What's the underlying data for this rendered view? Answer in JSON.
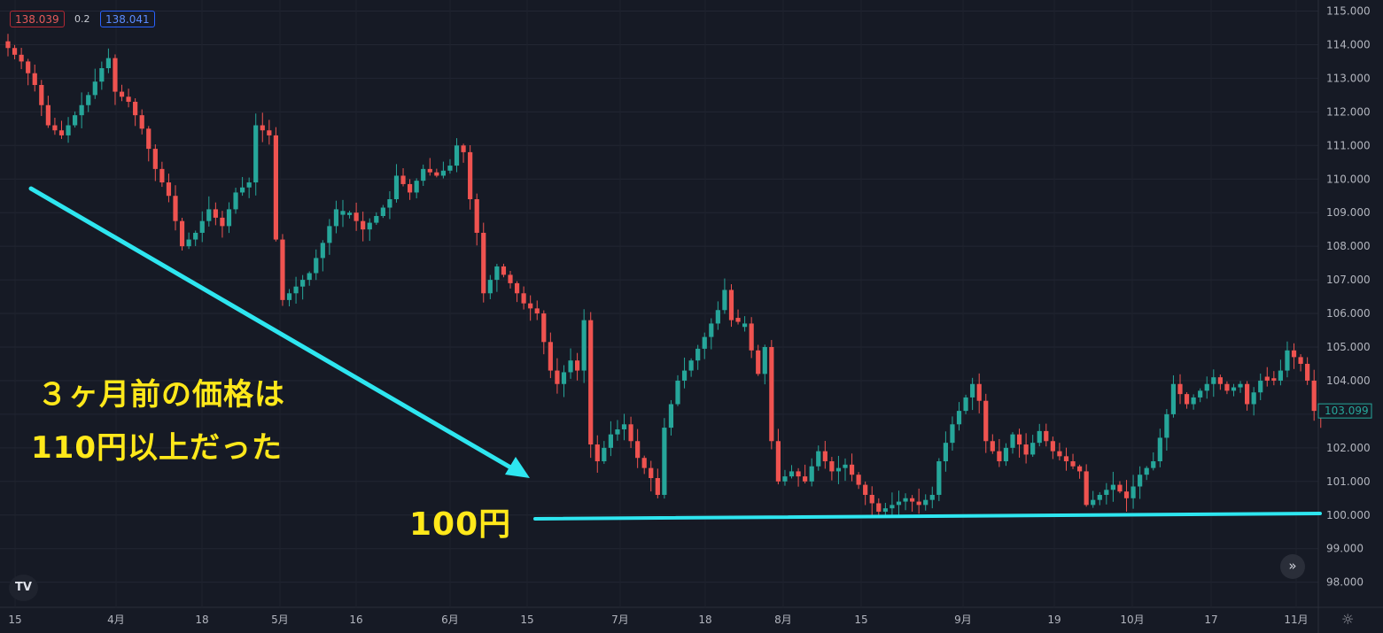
{
  "header": {
    "sell_price": "138.039",
    "spread": "0.2",
    "buy_price": "138.041"
  },
  "annotations": {
    "line1": "３ヶ月前の価格は",
    "line2": "110円以上だった",
    "level_label": "100円"
  },
  "icons": {
    "logo": "tradingview-logo-icon",
    "scroll": "double-chevron-right-icon",
    "settings": "gear-icon"
  },
  "colors": {
    "background": "#161a25",
    "up": "#26a69a",
    "down": "#ef5350",
    "annotation_line": "#2ee6f0",
    "annotation_text": "#ffe81a"
  },
  "chart_data": {
    "type": "candlestick",
    "title": "",
    "ylim": [
      97.6,
      115.2
    ],
    "y_ticks": [
      "115.000",
      "114.000",
      "113.000",
      "112.000",
      "111.000",
      "110.000",
      "109.000",
      "108.000",
      "107.000",
      "106.000",
      "105.000",
      "104.000",
      "103.000",
      "102.000",
      "101.000",
      "100.000",
      "99.000",
      "98.000"
    ],
    "x_ticks": [
      "15",
      "4月",
      "18",
      "5月",
      "16",
      "6月",
      "15",
      "7月",
      "18",
      "8月",
      "15",
      "9月",
      "19",
      "10月",
      "17",
      "11月"
    ],
    "last_price": "103.099",
    "grid": true,
    "anchors": [
      [
        0,
        113.9
      ],
      [
        2,
        113.5
      ],
      [
        4,
        112.8
      ],
      [
        6,
        111.6
      ],
      [
        8,
        111.3
      ],
      [
        10,
        111.9
      ],
      [
        12,
        112.5
      ],
      [
        14,
        113.3
      ],
      [
        15,
        113.6
      ],
      [
        16,
        112.6
      ],
      [
        18,
        112.3
      ],
      [
        20,
        111.5
      ],
      [
        22,
        110.3
      ],
      [
        24,
        109.5
      ],
      [
        26,
        108.0
      ],
      [
        28,
        108.4
      ],
      [
        30,
        109.1
      ],
      [
        32,
        108.6
      ],
      [
        34,
        109.6
      ],
      [
        36,
        109.9
      ],
      [
        37,
        111.6
      ],
      [
        39,
        111.3
      ],
      [
        40,
        108.2
      ],
      [
        41,
        106.4
      ],
      [
        43,
        106.8
      ],
      [
        45,
        107.2
      ],
      [
        47,
        108.1
      ],
      [
        49,
        109.1
      ],
      [
        51,
        109.0
      ],
      [
        53,
        108.5
      ],
      [
        55,
        108.9
      ],
      [
        57,
        109.4
      ],
      [
        58,
        110.1
      ],
      [
        60,
        109.6
      ],
      [
        62,
        110.3
      ],
      [
        64,
        110.1
      ],
      [
        66,
        110.4
      ],
      [
        67,
        111.0
      ],
      [
        68,
        110.8
      ],
      [
        69,
        109.4
      ],
      [
        70,
        108.4
      ],
      [
        71,
        106.6
      ],
      [
        73,
        107.4
      ],
      [
        75,
        106.9
      ],
      [
        77,
        106.3
      ],
      [
        79,
        106.0
      ],
      [
        81,
        104.3
      ],
      [
        82,
        103.9
      ],
      [
        84,
        104.6
      ],
      [
        85,
        104.3
      ],
      [
        86,
        105.8
      ],
      [
        87,
        102.1
      ],
      [
        88,
        101.6
      ],
      [
        90,
        102.4
      ],
      [
        92,
        102.7
      ],
      [
        94,
        101.7
      ],
      [
        96,
        101.1
      ],
      [
        97,
        100.6
      ],
      [
        98,
        102.6
      ],
      [
        100,
        104.0
      ],
      [
        102,
        104.6
      ],
      [
        104,
        105.3
      ],
      [
        106,
        106.1
      ],
      [
        107,
        106.7
      ],
      [
        108,
        105.8
      ],
      [
        110,
        105.7
      ],
      [
        111,
        104.9
      ],
      [
        112,
        104.2
      ],
      [
        113,
        105.0
      ],
      [
        114,
        102.2
      ],
      [
        115,
        101.0
      ],
      [
        117,
        101.3
      ],
      [
        119,
        101.0
      ],
      [
        121,
        101.9
      ],
      [
        123,
        101.3
      ],
      [
        125,
        101.5
      ],
      [
        127,
        100.9
      ],
      [
        128,
        100.6
      ],
      [
        130,
        100.1
      ],
      [
        132,
        100.3
      ],
      [
        134,
        100.5
      ],
      [
        136,
        100.3
      ],
      [
        138,
        100.6
      ],
      [
        139,
        101.6
      ],
      [
        141,
        102.7
      ],
      [
        143,
        103.5
      ],
      [
        144,
        103.9
      ],
      [
        145,
        103.4
      ],
      [
        146,
        102.2
      ],
      [
        148,
        101.6
      ],
      [
        150,
        102.4
      ],
      [
        152,
        101.8
      ],
      [
        154,
        102.5
      ],
      [
        156,
        101.9
      ],
      [
        158,
        101.6
      ],
      [
        160,
        101.3
      ],
      [
        161,
        100.3
      ],
      [
        163,
        100.6
      ],
      [
        165,
        100.9
      ],
      [
        167,
        100.5
      ],
      [
        169,
        101.2
      ],
      [
        171,
        101.6
      ],
      [
        173,
        103.0
      ],
      [
        174,
        103.9
      ],
      [
        176,
        103.3
      ],
      [
        178,
        103.7
      ],
      [
        180,
        104.1
      ],
      [
        182,
        103.7
      ],
      [
        184,
        103.9
      ],
      [
        185,
        103.3
      ],
      [
        187,
        104.0
      ],
      [
        189,
        104.0
      ],
      [
        190,
        104.3
      ],
      [
        191,
        104.9
      ],
      [
        193,
        104.5
      ],
      [
        194,
        104.0
      ],
      [
        195,
        103.1
      ],
      [
        196,
        102.9
      ]
    ]
  }
}
